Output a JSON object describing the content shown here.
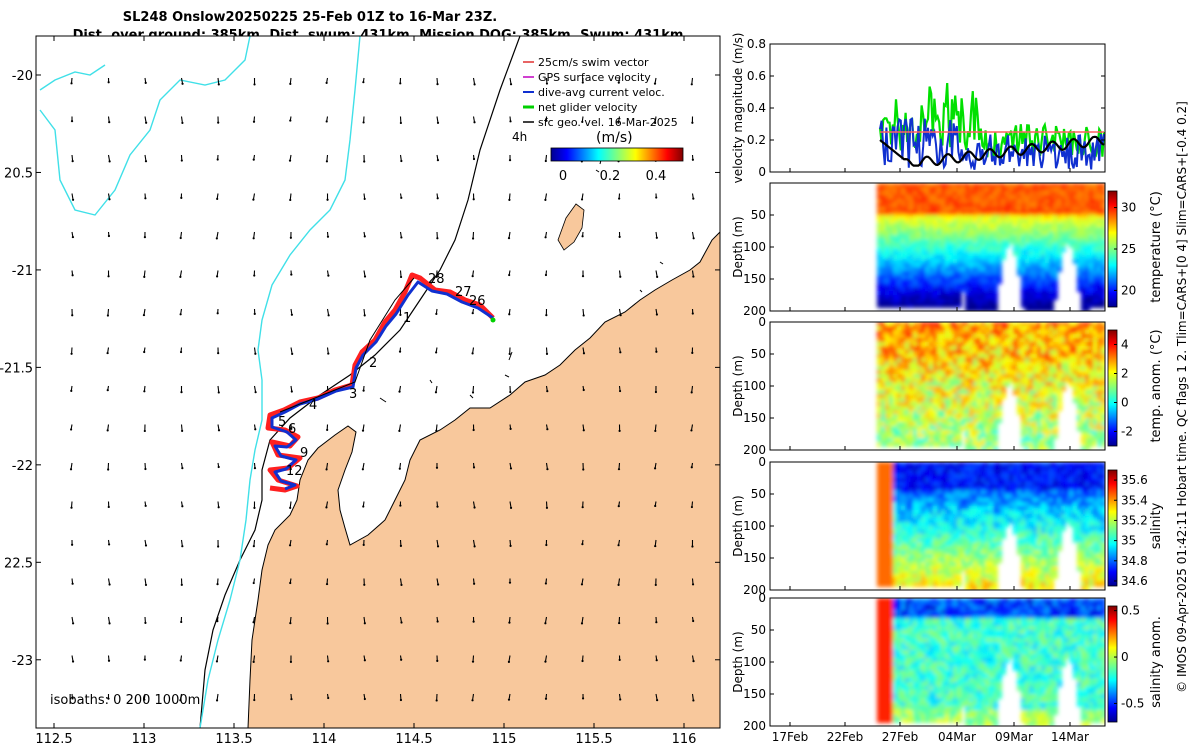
{
  "title": {
    "line1": "SL248 Onslow20250225 25-Feb 01Z to 16-Mar 23Z.",
    "line2": "Dist. over ground: 385km. Dist. swum: 431km. Mission DOG: 385km. Swum: 431km"
  },
  "map": {
    "lon_ticks": [
      "112.5",
      "113",
      "113.5",
      "114",
      "114.5",
      "115",
      "115.5",
      "116"
    ],
    "lat_ticks": [
      "-20",
      "20.5",
      "-21",
      "-21.5",
      "-22",
      "22.5",
      "-23"
    ],
    "xlim": [
      112.4,
      116.2
    ],
    "ylim": [
      -23.35,
      -19.8
    ],
    "isobaths_label": "isobaths: 0   200  1000m",
    "day_labels": [
      "28",
      "27",
      "26",
      "1",
      "2",
      "3",
      "4",
      "5",
      "6",
      "9",
      "12"
    ],
    "legend": [
      {
        "label": "25cm/s swim vector",
        "color": "#e03030"
      },
      {
        "label": "GPS surface velocity",
        "color": "#c000c0"
      },
      {
        "label": "dive-avg current veloc.",
        "color": "#1030d0"
      },
      {
        "label": "net glider velocity",
        "color": "#00d000"
      },
      {
        "label": "sfc geo. vel. 16-Mar-2025",
        "color": "#000000"
      }
    ],
    "colorbar": {
      "title": "(m/s)",
      "label_4h": "4h",
      "ticks": [
        "0",
        "0.2",
        "0.4"
      ]
    },
    "colors": {
      "land": "#f8c89c",
      "isobath_shallow": "#40e0e8",
      "isobath_deep": "#000000",
      "track_red": "#ff2020",
      "track_blue": "#1030d0"
    }
  },
  "chart_data": [
    {
      "type": "line",
      "title": "velocity magnitude",
      "ylabel": "velocity magnitude (m/s)",
      "ylim": [
        0,
        0.8
      ],
      "yticks": [
        "0",
        "0.2",
        "0.4",
        "0.6",
        "0.8"
      ],
      "series": [
        {
          "name": "net glider velocity",
          "color": "#00e000",
          "approx_range": [
            0.02,
            0.6
          ]
        },
        {
          "name": "dive-avg current veloc.",
          "color": "#1030d0",
          "approx_range": [
            0.0,
            0.36
          ]
        },
        {
          "name": "sfc geo. vel.",
          "color": "#000000",
          "approx_range": [
            0.04,
            0.22
          ]
        },
        {
          "name": "swim vector",
          "color": "#ff6060",
          "approx_value": 0.25
        }
      ]
    },
    {
      "type": "heatmap",
      "title": "temperature",
      "ylabel": "Depth (m)",
      "cbar_label": "temperature (°C)",
      "cbar_ticks": [
        "30",
        "25",
        "20"
      ],
      "crange": [
        18,
        32
      ],
      "yticks": [
        "50",
        "100",
        "150",
        "200"
      ],
      "ylim": [
        0,
        200
      ]
    },
    {
      "type": "heatmap",
      "title": "temp. anom.",
      "ylabel": "Depth (m)",
      "cbar_label": "temp. anom. (°C)",
      "cbar_ticks": [
        "4",
        "2",
        "0",
        "-2"
      ],
      "crange": [
        -3,
        5
      ],
      "yticks": [
        "0",
        "50",
        "100",
        "150",
        "200"
      ],
      "ylim": [
        0,
        200
      ]
    },
    {
      "type": "heatmap",
      "title": "salinity",
      "ylabel": "Depth (m)",
      "cbar_label": "salinity",
      "cbar_ticks": [
        "35.6",
        "35.4",
        "35.2",
        "35",
        "34.8",
        "34.6"
      ],
      "crange": [
        34.55,
        35.7
      ],
      "yticks": [
        "0",
        "50",
        "100",
        "150",
        "200"
      ],
      "ylim": [
        0,
        200
      ]
    },
    {
      "type": "heatmap",
      "title": "salinity anom.",
      "ylabel": "Depth (m)",
      "cbar_label": "salinity anom.",
      "cbar_ticks": [
        "0.5",
        "0",
        "-0.5"
      ],
      "crange": [
        -0.7,
        0.55
      ],
      "yticks": [
        "0",
        "50",
        "100",
        "150",
        "200"
      ],
      "ylim": [
        0,
        200
      ]
    }
  ],
  "time_axis": {
    "ticks": [
      "17Feb",
      "22Feb",
      "27Feb",
      "04Mar",
      "09Mar",
      "14Mar"
    ]
  },
  "footer": "© IMOS 09-Apr-2025 01:42:11 Hobart time. QC flags 1  2. Tlim=CARS+[0 4] Slim=CARS+[-0.4 0.2]"
}
